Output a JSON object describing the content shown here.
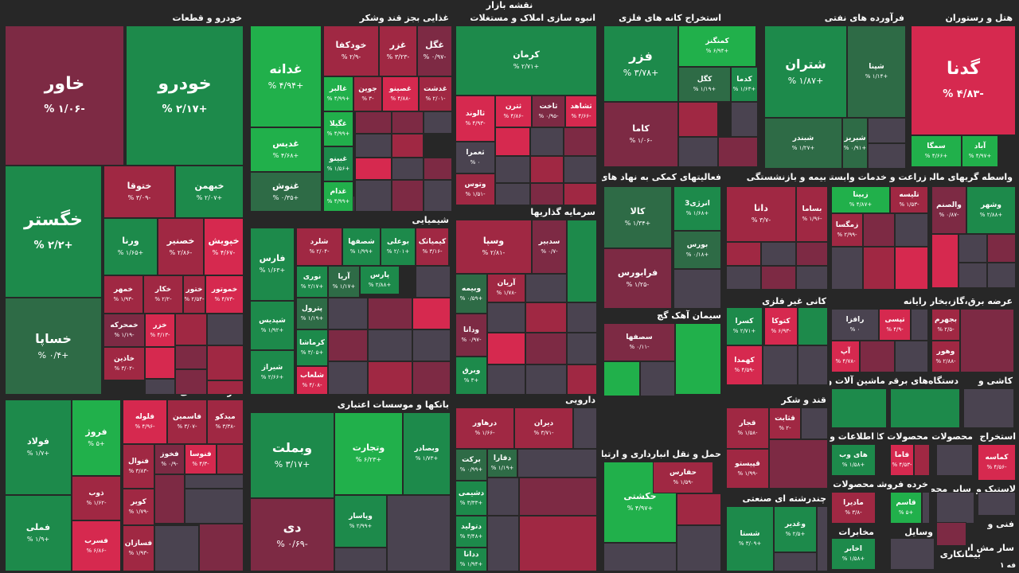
{
  "page": {
    "title": "نقشه بازار",
    "footer_label": "۱ فه"
  },
  "colors": {
    "background": "#272727",
    "strong_green": "#21b04b",
    "green": "#1d8a4b",
    "dark_green": "#2e6b46",
    "neutral": "#4a4350",
    "dark_red": "#7d2a44",
    "red": "#a02843",
    "strong_red": "#d6294f"
  },
  "sectors": [
    {
      "name": "خودرو و قطعات",
      "tiles": [
        {
          "symbol": "خاور",
          "change": "-۱/۰۶ %"
        },
        {
          "symbol": "خودرو",
          "change": "+۲/۱۷ %"
        },
        {
          "symbol": "خگستر",
          "change": "+۲/۲ %"
        },
        {
          "symbol": "خساپا",
          "change": "+۰/۴ %"
        },
        {
          "symbol": "ختوقا",
          "change": "-۳/۰۹ %"
        },
        {
          "symbol": "خبهمن",
          "change": "+۲/۰۷ %"
        },
        {
          "symbol": "ورنا",
          "change": "+۱/۶۵ %"
        },
        {
          "symbol": "خصنیر",
          "change": "-۲/۸۶ %"
        },
        {
          "symbol": "خپویش",
          "change": "-۴/۶۷ %"
        },
        {
          "symbol": "خمهر",
          "change": "-۱/۹۳ %"
        },
        {
          "symbol": "خکار",
          "change": "-۲/۲ %"
        },
        {
          "symbol": "ختور",
          "change": "-۲/۵۴ %"
        },
        {
          "symbol": "خموتور",
          "change": "-۴/۷۳ %"
        },
        {
          "symbol": "خمحرکه",
          "change": "-۱/۱۹ %"
        },
        {
          "symbol": "خزر",
          "change": "-۴/۱۳ %"
        },
        {
          "symbol": "خاذین",
          "change": "-۳/۰۲ %"
        }
      ]
    },
    {
      "name": "غذایی بجز قند وشکر",
      "tiles": [
        {
          "symbol": "غدانه",
          "change": "+۴/۹۴ %"
        },
        {
          "symbol": "خودکفا",
          "change": "-۲/۹ %"
        },
        {
          "symbol": "غزر",
          "change": "-۳/۲۳ %"
        },
        {
          "symbol": "غگل",
          "change": "-۰/۹۷ %"
        },
        {
          "symbol": "غالبر",
          "change": "+۴/۹۹ %"
        },
        {
          "symbol": "جوین",
          "change": "-۳ %"
        },
        {
          "symbol": "غصینو",
          "change": "-۴/۸۸ %"
        },
        {
          "symbol": "غدشت",
          "change": "-۲/۰۱ %"
        },
        {
          "symbol": "غدیس",
          "change": "+۴/۶۸ %"
        },
        {
          "symbol": "غگیلا",
          "change": "+۴/۹۹ %"
        },
        {
          "symbol": "غبینو",
          "change": "+۱/۵۶ %"
        },
        {
          "symbol": "غنوش",
          "change": "+۰/۳۵ %"
        },
        {
          "symbol": "غدام",
          "change": "+۴/۹۹ %"
        }
      ]
    },
    {
      "name": "انبوه سازی املاک و مستغلات",
      "tiles": [
        {
          "symbol": "کرمان",
          "change": "+۲/۷۱ %"
        },
        {
          "symbol": "ثالوند",
          "change": "-۴/۹۳ %"
        },
        {
          "symbol": "ثترن",
          "change": "-۴/۸۶ %"
        },
        {
          "symbol": "ثاخت",
          "change": "-۰/۹۵ %"
        },
        {
          "symbol": "ثشاهد",
          "change": "-۴/۶۶ %"
        },
        {
          "symbol": "ثعمرا",
          "change": "۰ %"
        },
        {
          "symbol": "وتوس",
          "change": "-۱/۵۱ %"
        }
      ]
    },
    {
      "name": "استخراج کانه های فلزی",
      "tiles": [
        {
          "symbol": "فزر",
          "change": "+۳/۷۸ %"
        },
        {
          "symbol": "کمنگنز",
          "change": "+۶/۹۴ %"
        },
        {
          "symbol": "کگل",
          "change": "+۱/۱۹ %"
        },
        {
          "symbol": "کدما",
          "change": "+۱/۶۳ %"
        },
        {
          "symbol": "کاما",
          "change": "-۱/۰۶ %"
        }
      ]
    },
    {
      "name": "فرآورده های نفتی",
      "tiles": [
        {
          "symbol": "شتران",
          "change": "+۱/۸۷ %"
        },
        {
          "symbol": "شپنا",
          "change": "+۱/۱۴ %"
        },
        {
          "symbol": "شبندر",
          "change": "+۱/۲۷ %"
        },
        {
          "symbol": "شبریز",
          "change": "+۰/۹۱ %"
        }
      ]
    },
    {
      "name": "هتل و رستوران",
      "tiles": [
        {
          "symbol": "گدنا",
          "change": "-۴/۸۳ %"
        },
        {
          "symbol": "سمگا",
          "change": "+۴/۶۶ %"
        },
        {
          "symbol": "آباد",
          "change": "+۴/۹۷ %"
        }
      ]
    },
    {
      "name": "فعالیتهای کمکی به نهاد های مالی",
      "tiles": [
        {
          "symbol": "کالا",
          "change": "+۱/۳۴ %"
        },
        {
          "symbol": "انرژی3",
          "change": "+۱/۶۸ %"
        },
        {
          "symbol": "بورس",
          "change": "+۰/۱۸ %"
        },
        {
          "symbol": "فرابورس",
          "change": "-۱/۲۵ %"
        }
      ]
    },
    {
      "name": "بیمه و بازنشستگی",
      "tiles": [
        {
          "symbol": "دانا",
          "change": "-۳/۷ %"
        },
        {
          "symbol": "بساما",
          "change": "-۱/۹۶ %"
        }
      ]
    },
    {
      "name": "زراعت و خدمات وابسته",
      "tiles": [
        {
          "symbol": "زبینا",
          "change": "+۴/۸۷ %"
        },
        {
          "symbol": "تلیسه",
          "change": "-۱/۵۳ %"
        },
        {
          "symbol": "زمگسا",
          "change": "-۲/۹۹ %"
        }
      ]
    },
    {
      "name": "واسطه گریهای مالی و",
      "tiles": [
        {
          "symbol": "والصنم",
          "change": "-۰/۸۷ %"
        },
        {
          "symbol": "وشهر",
          "change": "+۲/۸۸ %"
        }
      ]
    },
    {
      "name": "شیمیایی",
      "tiles": [
        {
          "symbol": "فارس",
          "change": "+۱/۶۳ %"
        },
        {
          "symbol": "شلرد",
          "change": "-۲/۰۴ %"
        },
        {
          "symbol": "شصفها",
          "change": "+۱/۹۹ %"
        },
        {
          "symbol": "بوعلی",
          "change": "+۲/۰۱ %"
        },
        {
          "symbol": "کیمیاتک",
          "change": "-۳/۱۶ %"
        },
        {
          "symbol": "نوری",
          "change": "+۲/۱۷ %"
        },
        {
          "symbol": "آریا",
          "change": "+۱/۱۷ %"
        },
        {
          "symbol": "پارس",
          "change": "+۲/۸۸ %"
        },
        {
          "symbol": "شپدیس",
          "change": "+۱/۹۲ %"
        },
        {
          "symbol": "پترول",
          "change": "+۱/۱۹ %"
        },
        {
          "symbol": "کرماشا",
          "change": "+۳/۰۵ %"
        },
        {
          "symbol": "شیراز",
          "change": "+۲/۶۶ %"
        },
        {
          "symbol": "شلعاب",
          "change": "-۴/۰۸ %"
        }
      ]
    },
    {
      "name": "سرمایه گذاریها",
      "tiles": [
        {
          "symbol": "وسپا",
          "change": "-۲/۸۱ %"
        },
        {
          "symbol": "سدبیر",
          "change": "-۰/۷ %"
        },
        {
          "symbol": "وبیمه",
          "change": "+۰/۵۹ %"
        },
        {
          "symbol": "آریان",
          "change": "-۱/۷۸ %"
        },
        {
          "symbol": "ودانا",
          "change": "-۰/۹۷ %"
        },
        {
          "symbol": "وبرق",
          "change": "+۳ %"
        }
      ]
    },
    {
      "name": "سیمان آهک گچ",
      "tiles": [
        {
          "symbol": "سصفها",
          "change": "-۰/۱۱ %"
        }
      ]
    },
    {
      "name": "کانی غیر فلزی",
      "tiles": [
        {
          "symbol": "کتوکا",
          "change": "-۶/۹۳ %"
        },
        {
          "symbol": "کسرا",
          "change": "+۲/۷۱ %"
        },
        {
          "symbol": "کهمدا",
          "change": "-۴/۵۹ %"
        }
      ]
    },
    {
      "name": "رایانه",
      "tiles": [
        {
          "symbol": "رافزا",
          "change": "۰ %"
        },
        {
          "symbol": "تپسی",
          "change": "-۴/۹ %"
        },
        {
          "symbol": "آپ",
          "change": "-۴/۷۸ %"
        }
      ]
    },
    {
      "name": "عرضه برق،گاز،بخار و آب",
      "tiles": [
        {
          "symbol": "بجهرم",
          "change": "-۲/۵ %"
        },
        {
          "symbol": "وهور",
          "change": "-۲/۸۸ %"
        }
      ]
    },
    {
      "name": "فلزات اساسی",
      "tiles": [
        {
          "symbol": "فولاد",
          "change": "+۱/۷ %"
        },
        {
          "symbol": "فروژ",
          "change": "+۵ %"
        },
        {
          "symbol": "فلوله",
          "change": "-۴/۹۶ %"
        },
        {
          "symbol": "فاسمین",
          "change": "-۳/۰۷ %"
        },
        {
          "symbol": "میدکو",
          "change": "-۳/۳۸ %"
        },
        {
          "symbol": "فملی",
          "change": "+۱/۹ %"
        },
        {
          "symbol": "ذوب",
          "change": "-۱/۶۲ %"
        },
        {
          "symbol": "فنوال",
          "change": "-۳/۸۳ %"
        },
        {
          "symbol": "فخوز",
          "change": "-۰/۹ %"
        },
        {
          "symbol": "فنوسا",
          "change": "-۴/۳ %"
        },
        {
          "symbol": "کویر",
          "change": "-۱/۷۹ %"
        },
        {
          "symbol": "فسرب",
          "change": "-۶/۸۶ %"
        },
        {
          "symbol": "فسازان",
          "change": "-۱/۹۳ %"
        }
      ]
    },
    {
      "name": "بانکها و موسسات اعتباری",
      "tiles": [
        {
          "symbol": "وبملت",
          "change": "+۳/۱۷ %"
        },
        {
          "symbol": "وتجارت",
          "change": "+۶/۲۳ %"
        },
        {
          "symbol": "وبصادر",
          "change": "+۱/۷۳ %"
        },
        {
          "symbol": "دی",
          "change": "-۰/۶۹ %"
        },
        {
          "symbol": "وپاسار",
          "change": "+۲/۹۹ %"
        }
      ]
    },
    {
      "name": "دارویی",
      "tiles": [
        {
          "symbol": "درهاور",
          "change": "-۱/۶۶ %"
        },
        {
          "symbol": "دیران",
          "change": "-۳/۷۱ %"
        },
        {
          "symbol": "برکت",
          "change": "+۰/۹۹ %"
        },
        {
          "symbol": "دفارا",
          "change": "+۱/۱۹ %"
        },
        {
          "symbol": "دشیمی",
          "change": "+۳/۳۳ %"
        },
        {
          "symbol": "دتولید",
          "change": "+۳/۴۸ %"
        },
        {
          "symbol": "ددانا",
          "change": "+۱/۹۴ %"
        }
      ]
    },
    {
      "name": "حمل و نقل انبارداری و ارتباطات",
      "tiles": [
        {
          "symbol": "حکشتی",
          "change": "+۴/۹۷ %"
        },
        {
          "symbol": "حفارس",
          "change": "-۱/۵۹ %"
        }
      ]
    },
    {
      "name": "قند و شکر",
      "tiles": [
        {
          "symbol": "قجار",
          "change": "-۱/۵۸ %"
        },
        {
          "symbol": "قثابت",
          "change": "-۲ %"
        },
        {
          "symbol": "قپیستو",
          "change": "-۱/۹۹ %"
        }
      ]
    },
    {
      "name": "چندرشته ای صنعتی",
      "tiles": [
        {
          "symbol": "شستا",
          "change": "+۳/۰۹ %"
        },
        {
          "symbol": "وغدیر",
          "change": "+۲/۵ %"
        }
      ]
    },
    {
      "name": "ماشین آلات و",
      "tiles": []
    },
    {
      "name": "دستگاه‌های برقی",
      "tiles": []
    },
    {
      "name": "کاشی و",
      "tiles": []
    },
    {
      "name": "اطلاعات و",
      "tiles": [
        {
          "symbol": "های وب",
          "change": "+۱/۵۸ %"
        }
      ]
    },
    {
      "name": "محصولات",
      "tiles": [
        {
          "symbol": "مادیرا",
          "change": "-۳/۸ %"
        }
      ]
    },
    {
      "name": "مخابرات",
      "tiles": [
        {
          "symbol": "اخابر",
          "change": "+۱/۵۸ %"
        }
      ]
    },
    {
      "name": "محصولات کاغذی",
      "tiles": [
        {
          "symbol": "فاما",
          "change": "-۴/۵۳ %"
        }
      ]
    },
    {
      "name": "خرده فروشی",
      "tiles": [
        {
          "symbol": "قاسم",
          "change": "+۵ %"
        }
      ]
    },
    {
      "name": "محصولات چوبی",
      "tiles": []
    },
    {
      "name": "استخراج",
      "tiles": [
        {
          "symbol": "کماسه",
          "change": "-۴/۵۶ %"
        }
      ]
    },
    {
      "name": "لاستیک و",
      "tiles": []
    },
    {
      "name": "سایر محصوا",
      "tiles": []
    },
    {
      "name": "فنی و",
      "tiles": []
    },
    {
      "name": "سار مش است",
      "tiles": []
    },
    {
      "name": "وسایل",
      "tiles": []
    },
    {
      "name": "بیمانکاری",
      "tiles": []
    }
  ]
}
